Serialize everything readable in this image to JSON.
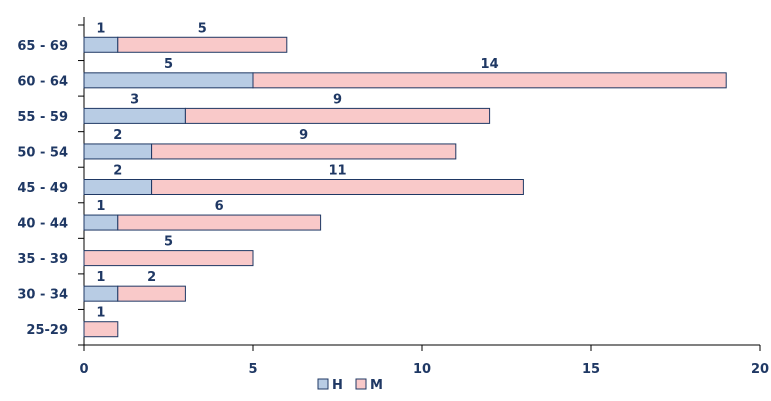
{
  "chart_data": {
    "type": "bar",
    "orientation": "horizontal",
    "stacked": true,
    "categories": [
      "25-29",
      "30 - 34",
      "35 - 39",
      "40 - 44",
      "45 - 49",
      "50 - 54",
      "55 - 59",
      "60 - 64",
      "65 - 69"
    ],
    "series": [
      {
        "name": "H",
        "values": [
          0,
          1,
          0,
          1,
          2,
          2,
          3,
          5,
          1
        ],
        "labels": [
          "",
          "1",
          "",
          "1",
          "2",
          "2",
          "3",
          "5",
          "1"
        ]
      },
      {
        "name": "M",
        "values": [
          1,
          2,
          5,
          6,
          11,
          9,
          9,
          14,
          5
        ],
        "labels": [
          "1",
          "2",
          "5",
          "6",
          "11",
          "9",
          "9",
          "14",
          "5"
        ]
      }
    ],
    "xlim": [
      0,
      20
    ],
    "xticks": [
      "0",
      "5",
      "10",
      "15",
      "20"
    ],
    "title": "",
    "xlabel": "",
    "ylabel": "",
    "grid": false,
    "legend_position": "bottom",
    "colors": {
      "H": "#b8cce4",
      "M": "#f9c9c9",
      "outline": "#1f3864",
      "text": "#1f3864"
    }
  }
}
